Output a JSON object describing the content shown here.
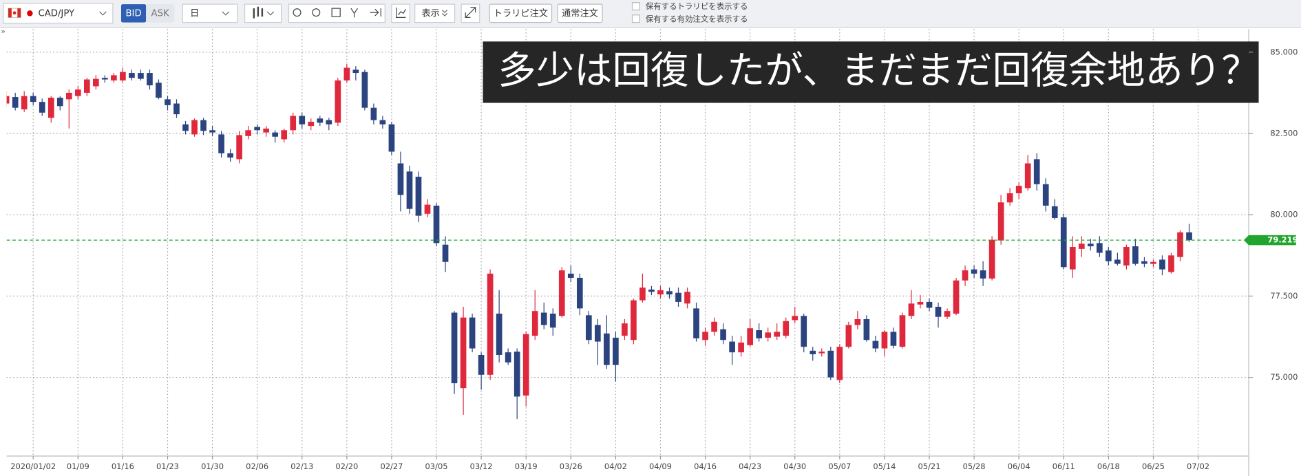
{
  "toolbar": {
    "collapse": "»",
    "symbol": "CAD/JPY",
    "bid": "BID",
    "ask": "ASK",
    "timeframe": "日",
    "display": "表示",
    "trarepeat_order": "トラリピ注文",
    "normal_order": "通常注文",
    "options": [
      "保有するトラリピを表示する",
      "保有する有効注文を表示する"
    ]
  },
  "chart_data": {
    "type": "candlestick",
    "title": "多少は回復したが、まだまだ回復余地あり？",
    "categories": [
      null,
      null,
      null,
      "2020/01/02",
      null,
      null,
      null,
      null,
      "01/09",
      null,
      null,
      null,
      null,
      "01/16",
      null,
      null,
      null,
      null,
      "01/23",
      null,
      null,
      null,
      null,
      "01/30",
      null,
      null,
      null,
      null,
      "02/06",
      null,
      null,
      null,
      null,
      "02/13",
      null,
      null,
      null,
      null,
      "02/20",
      null,
      null,
      null,
      null,
      "02/27",
      null,
      null,
      null,
      null,
      "03/05",
      null,
      null,
      null,
      null,
      "03/12",
      null,
      null,
      null,
      null,
      "03/19",
      null,
      null,
      null,
      null,
      "03/26",
      null,
      null,
      null,
      null,
      "04/02",
      null,
      null,
      null,
      null,
      "04/09",
      null,
      null,
      null,
      null,
      "04/16",
      null,
      null,
      null,
      null,
      "04/23",
      null,
      null,
      null,
      null,
      "04/30",
      null,
      null,
      null,
      null,
      "05/07",
      null,
      null,
      null,
      null,
      "05/14",
      null,
      null,
      null,
      null,
      "05/21",
      null,
      null,
      null,
      null,
      "05/28",
      null,
      null,
      null,
      null,
      "06/04",
      null,
      null,
      null,
      null,
      "06/11",
      null,
      null,
      null,
      null,
      "06/18",
      null,
      null,
      null,
      null,
      "06/25",
      null,
      null,
      null,
      null,
      "07/02"
    ],
    "open": [
      83.42,
      83.62,
      83.24,
      83.65,
      83.47,
      82.98,
      83.6,
      83.55,
      83.65,
      83.75,
      83.95,
      84.21,
      84.13,
      84.13,
      84.36,
      84.36,
      84.36,
      84.06,
      83.55,
      83.42,
      82.78,
      82.47,
      82.91,
      82.6,
      82.47,
      81.89,
      81.71,
      82.42,
      82.7,
      82.53,
      82.53,
      82.32,
      82.6,
      83.04,
      82.73,
      82.96,
      82.91,
      82.83,
      84.13,
      84.46,
      84.39,
      83.29,
      82.91,
      82.78,
      81.58,
      81.33,
      81.17,
      80.03,
      80.28,
      79.08,
      76.99,
      74.67,
      76.84,
      75.69,
      75.08,
      76.96,
      75.77,
      75.79,
      74.44,
      76.28,
      76.99,
      76.96,
      76.89,
      78.19,
      78.06,
      76.91,
      76.61,
      76.35,
      76.22,
      76.28,
      76.15,
      77.37,
      77.7,
      77.55,
      77.65,
      77.6,
      77.27,
      77.12,
      76.15,
      76.4,
      76.48,
      76.1,
      75.77,
      75.99,
      76.45,
      76.22,
      76.25,
      76.28,
      76.76,
      76.89,
      75.82,
      75.74,
      75.82,
      74.92,
      75.94,
      76.61,
      76.79,
      76.12,
      75.89,
      76.4,
      75.94,
      76.89,
      77.24,
      77.32,
      77.17,
      76.86,
      76.96,
      77.98,
      78.32,
      78.29,
      78.04,
      79.21,
      80.38,
      80.66,
      80.82,
      81.71,
      80.94,
      80.26,
      79.92,
      78.32,
      78.95,
      79.11,
      79.13,
      78.9,
      78.62,
      78.44,
      79.03,
      78.57,
      78.49,
      78.62,
      78.24,
      78.7,
      79.46,
      null
    ],
    "high": [
      83.8,
      83.75,
      83.8,
      83.75,
      83.57,
      83.65,
      83.65,
      83.85,
      83.95,
      84.21,
      84.29,
      84.29,
      84.36,
      84.52,
      84.46,
      84.46,
      84.46,
      84.16,
      83.65,
      83.55,
      82.88,
      82.96,
      82.98,
      82.73,
      82.58,
      82.02,
      82.58,
      82.73,
      82.78,
      82.73,
      82.6,
      82.65,
      83.14,
      83.14,
      82.96,
      83.04,
      82.98,
      84.21,
      84.64,
      84.57,
      84.46,
      83.42,
      83.04,
      82.86,
      81.94,
      81.51,
      81.33,
      80.48,
      80.36,
      79.34,
      77.04,
      77.17,
      76.96,
      75.77,
      78.32,
      77.68,
      75.89,
      75.89,
      76.4,
      77.68,
      77.3,
      77.12,
      78.39,
      78.44,
      78.19,
      77.04,
      76.79,
      76.91,
      76.4,
      76.79,
      77.42,
      78.19,
      77.81,
      77.81,
      77.76,
      77.76,
      77.76,
      77.3,
      76.53,
      76.84,
      76.66,
      76.28,
      76.28,
      76.79,
      76.66,
      76.53,
      76.66,
      76.84,
      77.17,
      76.96,
      75.94,
      75.89,
      75.94,
      76.02,
      76.71,
      77.04,
      76.91,
      76.28,
      76.45,
      76.53,
      76.99,
      77.68,
      77.53,
      77.42,
      77.3,
      77.12,
      78.06,
      78.44,
      78.44,
      78.57,
      79.34,
      80.61,
      80.82,
      80.99,
      81.84,
      81.89,
      81.12,
      80.48,
      80.03,
      79.34,
      79.34,
      79.26,
      79.34,
      79.01,
      78.83,
      79.08,
      79.26,
      78.7,
      78.62,
      78.75,
      78.83,
      79.52,
      79.72,
      null
    ],
    "low": [
      83.34,
      83.21,
      83.16,
      83.37,
      83.04,
      82.83,
      83.21,
      82.65,
      83.55,
      83.65,
      83.85,
      84.06,
      84.06,
      84.06,
      84.13,
      84.13,
      83.85,
      83.55,
      83.21,
      82.98,
      82.47,
      82.4,
      82.45,
      82.42,
      81.76,
      81.63,
      81.58,
      82.32,
      82.47,
      82.4,
      82.22,
      82.22,
      82.47,
      82.65,
      82.6,
      82.73,
      82.6,
      82.73,
      84.06,
      84.13,
      83.21,
      82.78,
      82.65,
      81.84,
      80.1,
      80.03,
      79.77,
      79.92,
      79.03,
      78.24,
      74.49,
      73.85,
      75.77,
      74.62,
      74.92,
      75.46,
      75.38,
      73.72,
      74.11,
      76.15,
      76.48,
      76.28,
      76.84,
      77.93,
      76.91,
      76.02,
      75.38,
      75.26,
      74.87,
      76.15,
      76.02,
      77.3,
      77.53,
      77.42,
      77.42,
      77.17,
      77.12,
      76.1,
      75.97,
      76.28,
      76.02,
      75.38,
      75.64,
      75.94,
      76.1,
      76.1,
      76.15,
      76.2,
      76.66,
      75.77,
      75.51,
      75.64,
      74.92,
      74.82,
      75.89,
      76.48,
      76.1,
      75.77,
      75.64,
      75.89,
      75.89,
      76.79,
      77.12,
      77.04,
      76.53,
      76.79,
      76.91,
      77.81,
      78.06,
      77.81,
      77.98,
      79.08,
      80.28,
      80.48,
      80.74,
      80.74,
      80.1,
      79.85,
      78.32,
      78.06,
      78.7,
      78.9,
      78.7,
      78.44,
      78.44,
      78.32,
      78.44,
      78.39,
      78.39,
      78.14,
      78.19,
      78.57,
      79.16,
      null
    ],
    "close": [
      83.65,
      83.29,
      83.65,
      83.47,
      83.14,
      83.6,
      83.34,
      83.75,
      83.85,
      84.16,
      84.18,
      84.16,
      84.29,
      84.39,
      84.21,
      84.18,
      83.98,
      83.6,
      83.37,
      83.09,
      82.58,
      82.91,
      82.58,
      82.53,
      81.89,
      81.76,
      82.45,
      82.6,
      82.6,
      82.65,
      82.4,
      82.6,
      83.04,
      82.78,
      82.86,
      82.83,
      82.78,
      84.13,
      84.52,
      84.36,
      83.29,
      82.91,
      82.78,
      81.94,
      80.61,
      80.18,
      79.97,
      80.31,
      79.13,
      78.55,
      74.82,
      76.84,
      75.89,
      75.08,
      78.19,
      75.69,
      75.46,
      74.41,
      76.33,
      77.04,
      76.61,
      76.53,
      78.29,
      78.06,
      77.12,
      76.15,
      76.1,
      75.38,
      75.38,
      76.66,
      77.37,
      77.76,
      77.63,
      77.68,
      77.55,
      77.32,
      77.63,
      76.2,
      76.4,
      76.71,
      76.15,
      75.77,
      76.07,
      76.51,
      76.2,
      76.38,
      76.4,
      76.73,
      76.89,
      75.94,
      75.71,
      75.79,
      75.0,
      75.94,
      76.61,
      76.79,
      76.15,
      75.89,
      76.4,
      75.97,
      76.91,
      77.27,
      77.32,
      77.14,
      76.86,
      77.04,
      77.98,
      78.29,
      78.19,
      78.04,
      79.23,
      80.38,
      80.66,
      80.89,
      81.58,
      80.94,
      80.28,
      79.9,
      78.39,
      79.01,
      79.11,
      79.03,
      78.83,
      78.57,
      78.49,
      79.01,
      78.49,
      78.49,
      78.55,
      78.32,
      78.75,
      79.46,
      79.219,
      null
    ],
    "up_color": "#e0283c",
    "down_color": "#2b4480",
    "ylim": [
      72.58,
      85.71
    ],
    "yticks": [
      {
        "value": 75,
        "label": "75.000"
      },
      {
        "value": 77.5,
        "label": "77.500"
      },
      {
        "value": 80,
        "label": "80.000"
      },
      {
        "value": 82.5,
        "label": "82.500"
      },
      {
        "value": 85,
        "label": "85.000"
      }
    ],
    "grid": true,
    "current_price": 79.219,
    "current_price_color": "#22a52e"
  }
}
